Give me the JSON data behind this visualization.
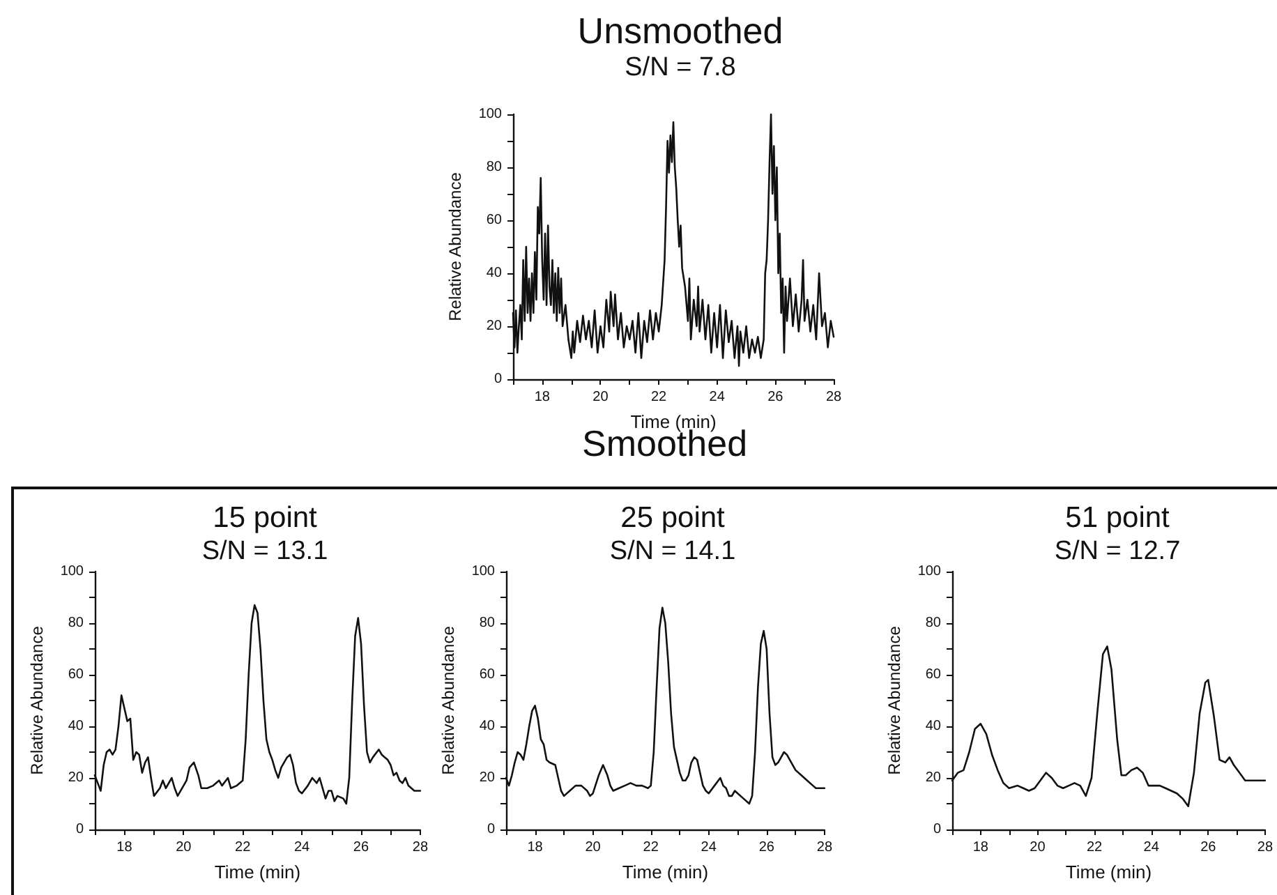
{
  "chart_data": [
    {
      "type": "line",
      "title": "Unsmoothed",
      "subtitle": "S/N = 7.8",
      "xlabel": "Time (min)",
      "ylabel": "Relative Abundance",
      "xlim": [
        17,
        28
      ],
      "ylim": [
        0,
        100
      ],
      "xticks": [
        {
          "value": 17,
          "label": null
        },
        18,
        {
          "value": 19,
          "label": null
        },
        20,
        {
          "value": 21,
          "label": null
        },
        22,
        {
          "value": 23,
          "label": null
        },
        24,
        {
          "value": 25,
          "label": null
        },
        26,
        {
          "value": 27,
          "label": null
        },
        28
      ],
      "yticks": [
        0,
        {
          "value": 10,
          "label": null
        },
        20,
        {
          "value": 30,
          "label": null
        },
        40,
        {
          "value": 50,
          "label": null
        },
        60,
        {
          "value": 70,
          "label": null
        },
        80,
        {
          "value": 90,
          "label": null
        },
        100
      ],
      "x": [
        17.0,
        17.05,
        17.1,
        17.15,
        17.2,
        17.25,
        17.3,
        17.35,
        17.4,
        17.45,
        17.5,
        17.55,
        17.6,
        17.65,
        17.7,
        17.75,
        17.8,
        17.85,
        17.9,
        17.95,
        18.0,
        18.05,
        18.1,
        18.15,
        18.2,
        18.25,
        18.3,
        18.35,
        18.4,
        18.45,
        18.5,
        18.55,
        18.6,
        18.65,
        18.7,
        18.8,
        18.9,
        19.0,
        19.05,
        19.1,
        19.2,
        19.3,
        19.4,
        19.5,
        19.6,
        19.7,
        19.8,
        19.9,
        20.0,
        20.1,
        20.2,
        20.3,
        20.35,
        20.45,
        20.5,
        20.6,
        20.7,
        20.8,
        20.9,
        21.0,
        21.1,
        21.2,
        21.3,
        21.4,
        21.5,
        21.6,
        21.7,
        21.8,
        21.9,
        22.0,
        22.1,
        22.2,
        22.25,
        22.3,
        22.35,
        22.4,
        22.45,
        22.5,
        22.55,
        22.6,
        22.65,
        22.7,
        22.75,
        22.8,
        22.9,
        23.0,
        23.05,
        23.1,
        23.2,
        23.3,
        23.35,
        23.4,
        23.5,
        23.6,
        23.7,
        23.8,
        23.9,
        24.0,
        24.1,
        24.2,
        24.3,
        24.4,
        24.5,
        24.6,
        24.7,
        24.75,
        24.8,
        24.9,
        25.0,
        25.1,
        25.2,
        25.3,
        25.4,
        25.5,
        25.6,
        25.65,
        25.7,
        25.75,
        25.8,
        25.85,
        25.9,
        25.95,
        26.0,
        26.05,
        26.1,
        26.15,
        26.2,
        26.25,
        26.3,
        26.35,
        26.4,
        26.5,
        26.6,
        26.7,
        26.8,
        26.9,
        26.95,
        27.0,
        27.1,
        27.2,
        27.3,
        27.4,
        27.5,
        27.6,
        27.7,
        27.8,
        27.9,
        28.0
      ],
      "series": [
        {
          "color": "#111111",
          "values": [
            25,
            12,
            26,
            10,
            20,
            28,
            15,
            45,
            22,
            50,
            25,
            38,
            22,
            40,
            25,
            48,
            30,
            65,
            55,
            76,
            45,
            30,
            55,
            28,
            58,
            35,
            28,
            45,
            25,
            40,
            22,
            42,
            25,
            38,
            20,
            28,
            15,
            8,
            18,
            10,
            22,
            14,
            24,
            15,
            22,
            12,
            26,
            10,
            20,
            12,
            30,
            18,
            33,
            20,
            32,
            15,
            25,
            12,
            20,
            15,
            22,
            10,
            25,
            8,
            22,
            14,
            26,
            15,
            25,
            18,
            28,
            45,
            65,
            90,
            78,
            92,
            82,
            97,
            80,
            72,
            60,
            50,
            58,
            42,
            35,
            22,
            38,
            15,
            30,
            20,
            35,
            18,
            30,
            15,
            28,
            10,
            25,
            12,
            28,
            8,
            26,
            14,
            22,
            8,
            20,
            5,
            18,
            10,
            20,
            8,
            15,
            10,
            16,
            8,
            15,
            40,
            45,
            60,
            82,
            100,
            70,
            88,
            60,
            80,
            40,
            55,
            25,
            38,
            10,
            35,
            22,
            38,
            20,
            32,
            18,
            30,
            45,
            22,
            30,
            18,
            28,
            15,
            40,
            20,
            25,
            12,
            22,
            16
          ]
        }
      ]
    },
    {
      "type": "line",
      "title": "15 point",
      "subtitle": "S/N = 13.1",
      "xlabel": "Time (min)",
      "ylabel": "Relative Abundance",
      "xlim": [
        17,
        28
      ],
      "ylim": [
        0,
        100
      ],
      "xticks": [
        {
          "value": 17,
          "label": null
        },
        18,
        {
          "value": 19,
          "label": null
        },
        20,
        {
          "value": 21,
          "label": null
        },
        22,
        {
          "value": 23,
          "label": null
        },
        24,
        {
          "value": 25,
          "label": null
        },
        26,
        {
          "value": 27,
          "label": null
        },
        28
      ],
      "yticks": [
        0,
        {
          "value": 10,
          "label": null
        },
        20,
        {
          "value": 30,
          "label": null
        },
        40,
        {
          "value": 50,
          "label": null
        },
        60,
        {
          "value": 70,
          "label": null
        },
        80,
        {
          "value": 90,
          "label": null
        },
        100
      ],
      "x": [
        17,
        17.1,
        17.2,
        17.3,
        17.4,
        17.5,
        17.6,
        17.7,
        17.8,
        17.9,
        18.0,
        18.1,
        18.2,
        18.3,
        18.4,
        18.5,
        18.6,
        18.7,
        18.8,
        18.9,
        19.0,
        19.2,
        19.3,
        19.4,
        19.6,
        19.7,
        19.8,
        20.0,
        20.1,
        20.2,
        20.35,
        20.5,
        20.6,
        20.8,
        21.0,
        21.2,
        21.3,
        21.5,
        21.6,
        21.8,
        22.0,
        22.1,
        22.2,
        22.3,
        22.4,
        22.5,
        22.6,
        22.7,
        22.8,
        22.9,
        23.0,
        23.1,
        23.2,
        23.3,
        23.5,
        23.6,
        23.7,
        23.8,
        23.9,
        24.0,
        24.2,
        24.35,
        24.5,
        24.6,
        24.8,
        24.9,
        25.0,
        25.1,
        25.2,
        25.4,
        25.5,
        25.6,
        25.7,
        25.8,
        25.9,
        26.0,
        26.1,
        26.2,
        26.3,
        26.4,
        26.6,
        26.7,
        26.8,
        26.9,
        27.0,
        27.1,
        27.2,
        27.3,
        27.4,
        27.5,
        27.6,
        27.7,
        27.8,
        27.9,
        28.0
      ],
      "series": [
        {
          "color": "#111111",
          "values": [
            21,
            18,
            15,
            25,
            30,
            31,
            29,
            31,
            40,
            52,
            47,
            42,
            43,
            27,
            30,
            29,
            22,
            26,
            28,
            20,
            13,
            16,
            19,
            16,
            20,
            16,
            13,
            17,
            19,
            24,
            26,
            21,
            16,
            16,
            17,
            19,
            17,
            20,
            16,
            17,
            19,
            35,
            60,
            80,
            87,
            84,
            70,
            50,
            35,
            30,
            27,
            23,
            20,
            24,
            28,
            29,
            25,
            18,
            15,
            14,
            17,
            20,
            18,
            20,
            12,
            15,
            15,
            11,
            13,
            12,
            10,
            20,
            50,
            75,
            82,
            72,
            48,
            30,
            26,
            28,
            31,
            29,
            28,
            27,
            25,
            21,
            22,
            19,
            18,
            20,
            17,
            16,
            15,
            15,
            15
          ]
        }
      ]
    },
    {
      "type": "line",
      "title": "25 point",
      "subtitle": "S/N = 14.1",
      "annotations": [
        "Smoothed"
      ],
      "xlabel": "Time (min)",
      "ylabel": "Relative Abundance",
      "xlim": [
        17,
        28
      ],
      "ylim": [
        0,
        100
      ],
      "xticks": [
        {
          "value": 17,
          "label": null
        },
        18,
        {
          "value": 19,
          "label": null
        },
        20,
        {
          "value": 21,
          "label": null
        },
        22,
        {
          "value": 23,
          "label": null
        },
        24,
        {
          "value": 25,
          "label": null
        },
        26,
        {
          "value": 27,
          "label": null
        },
        28
      ],
      "yticks": [
        0,
        {
          "value": 10,
          "label": null
        },
        20,
        {
          "value": 30,
          "label": null
        },
        40,
        {
          "value": 50,
          "label": null
        },
        60,
        {
          "value": 70,
          "label": null
        },
        80,
        {
          "value": 90,
          "label": null
        },
        100
      ],
      "x": [
        17,
        17.1,
        17.2,
        17.3,
        17.4,
        17.5,
        17.6,
        17.7,
        17.8,
        17.9,
        18.0,
        18.1,
        18.2,
        18.3,
        18.4,
        18.5,
        18.7,
        18.8,
        18.9,
        19.0,
        19.2,
        19.4,
        19.6,
        19.8,
        19.9,
        20.0,
        20.2,
        20.35,
        20.5,
        20.6,
        20.7,
        20.9,
        21.1,
        21.3,
        21.5,
        21.7,
        21.9,
        22.0,
        22.1,
        22.2,
        22.3,
        22.4,
        22.5,
        22.6,
        22.7,
        22.8,
        22.9,
        23.0,
        23.1,
        23.2,
        23.3,
        23.4,
        23.5,
        23.6,
        23.7,
        23.8,
        23.9,
        24.0,
        24.2,
        24.4,
        24.5,
        24.6,
        24.7,
        24.8,
        24.9,
        25.0,
        25.2,
        25.4,
        25.5,
        25.6,
        25.7,
        25.8,
        25.9,
        26.0,
        26.1,
        26.2,
        26.3,
        26.4,
        26.6,
        26.7,
        26.8,
        27.0,
        27.2,
        27.4,
        27.6,
        27.7,
        28.0
      ],
      "series": [
        {
          "color": "#111111",
          "values": [
            20,
            17,
            21,
            26,
            30,
            29,
            27,
            33,
            40,
            46,
            48,
            43,
            35,
            33,
            27,
            26,
            25,
            20,
            15,
            13,
            15,
            17,
            17,
            15,
            13,
            14,
            21,
            25,
            21,
            17,
            15,
            16,
            17,
            18,
            17,
            17,
            16,
            17,
            30,
            55,
            78,
            86,
            80,
            65,
            45,
            32,
            27,
            22,
            19,
            19,
            21,
            26,
            28,
            27,
            22,
            17,
            15,
            14,
            17,
            20,
            17,
            16,
            13,
            13,
            15,
            14,
            12,
            10,
            13,
            30,
            55,
            72,
            77,
            70,
            45,
            28,
            25,
            26,
            30,
            29,
            27,
            23,
            21,
            19,
            17,
            16,
            16
          ]
        }
      ]
    },
    {
      "type": "line",
      "title": "51 point",
      "subtitle": "S/N = 12.7",
      "xlabel": "Time (min)",
      "ylabel": "Relative Abundance",
      "xlim": [
        17,
        28
      ],
      "ylim": [
        0,
        100
      ],
      "xticks": [
        {
          "value": 17,
          "label": null
        },
        18,
        {
          "value": 19,
          "label": null
        },
        20,
        {
          "value": 21,
          "label": null
        },
        22,
        {
          "value": 23,
          "label": null
        },
        24,
        {
          "value": 25,
          "label": null
        },
        26,
        {
          "value": 27,
          "label": null
        },
        28
      ],
      "yticks": [
        0,
        {
          "value": 10,
          "label": null
        },
        20,
        {
          "value": 30,
          "label": null
        },
        40,
        {
          "value": 50,
          "label": null
        },
        60,
        {
          "value": 70,
          "label": null
        },
        80,
        {
          "value": 90,
          "label": null
        },
        100
      ],
      "x": [
        17,
        17.2,
        17.4,
        17.6,
        17.8,
        18.0,
        18.2,
        18.4,
        18.6,
        18.8,
        19.0,
        19.3,
        19.5,
        19.7,
        19.9,
        20.1,
        20.3,
        20.5,
        20.7,
        20.9,
        21.1,
        21.3,
        21.5,
        21.7,
        21.9,
        22.1,
        22.3,
        22.45,
        22.6,
        22.8,
        22.95,
        23.1,
        23.3,
        23.5,
        23.7,
        23.9,
        24.1,
        24.3,
        24.5,
        24.7,
        24.9,
        25.1,
        25.3,
        25.5,
        25.7,
        25.9,
        26.0,
        26.2,
        26.4,
        26.6,
        26.75,
        26.9,
        27.1,
        27.3,
        27.5,
        27.7,
        28.0
      ],
      "series": [
        {
          "color": "#111111",
          "values": [
            19,
            22,
            23,
            30,
            39,
            41,
            37,
            29,
            23,
            18,
            16,
            17,
            16,
            15,
            16,
            19,
            22,
            20,
            17,
            16,
            17,
            18,
            17,
            13,
            20,
            45,
            68,
            71,
            62,
            35,
            21,
            21,
            23,
            24,
            22,
            17,
            17,
            17,
            16,
            15,
            14,
            12,
            9,
            22,
            45,
            57,
            58,
            44,
            27,
            26,
            28,
            25,
            22,
            19,
            19,
            19,
            19
          ]
        }
      ]
    }
  ]
}
